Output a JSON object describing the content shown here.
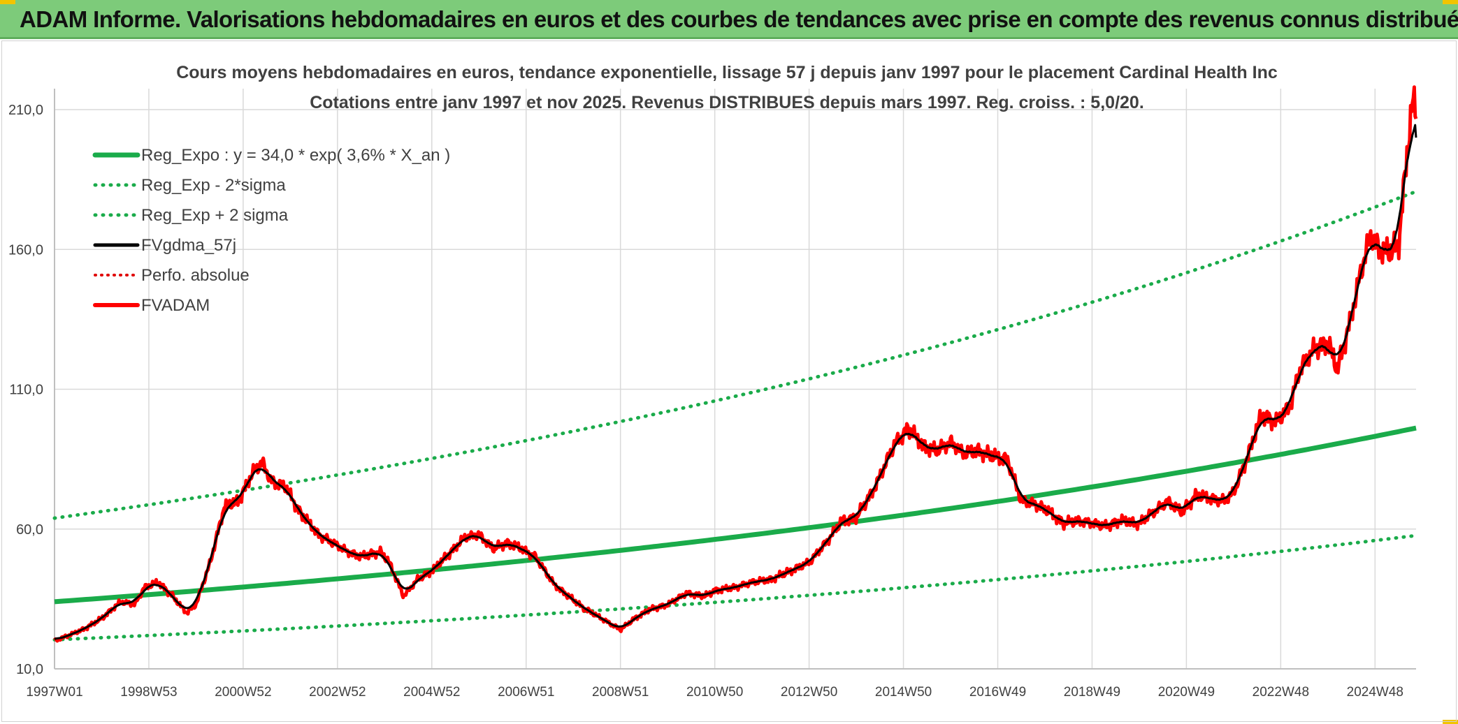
{
  "banner": {
    "title": "ADAM Informe. Valorisations hebdomadaires en euros et des courbes de tendances avec prise en compte des revenus connus distribués"
  },
  "colors": {
    "banner": "#7dcb7a",
    "reg": "#1aab4a",
    "sigma": "#1aab4a",
    "fv": "#000000",
    "perfo": "#e00000",
    "adam": "#ff0000",
    "grid": "#d9d9d9",
    "text": "#404040"
  },
  "chart_data": {
    "type": "line",
    "title": "Cours moyens hebdomadaires en euros, tendance exponentielle, lissage 57 j depuis janv 1997 pour le placement Cardinal Health Inc",
    "subtitle": "Cotations entre janv 1997 et nov 2025. Revenus DISTRIBUES depuis mars 1997. Reg. croiss. : 5,0/20.",
    "xlabel": "",
    "ylabel": "",
    "ylim": [
      10,
      210
    ],
    "yticks": [
      "10,0",
      "60,0",
      "110,0",
      "160,0",
      "210,0"
    ],
    "ytick_values": [
      10,
      60,
      110,
      160,
      210
    ],
    "xlim": [
      1997.0,
      2025.87
    ],
    "xticks": [
      "1997W01",
      "1998W53",
      "2000W52",
      "2002W52",
      "2004W52",
      "2006W51",
      "2008W51",
      "2010W50",
      "2012W50",
      "2014W50",
      "2016W49",
      "2018W49",
      "2020W49",
      "2022W48",
      "2024W48"
    ],
    "xtick_values": [
      1997.0,
      1999.0,
      2001.0,
      2003.0,
      2005.0,
      2007.0,
      2009.0,
      2011.0,
      2013.0,
      2015.0,
      2017.0,
      2019.0,
      2021.0,
      2023.0,
      2025.0
    ],
    "grid": true,
    "legend_position": "top-left",
    "legend": [
      "Reg_Expo : y = 34,0 * exp( 3,6% *  X_an )",
      "Reg_Exp - 2*sigma",
      "Reg_Exp + 2 sigma",
      "FVgdma_57j",
      "Perfo. absolue",
      "FVADAM"
    ],
    "regression": {
      "a": 34.0,
      "rate": 0.036,
      "lower_factor": 0.6,
      "upper_factor": 1.88
    },
    "fvadam": {
      "name": "FVADAM",
      "x": [
        1997.0,
        1997.3,
        1997.6,
        1998.0,
        1998.4,
        1998.7,
        1998.9,
        1999.2,
        1999.5,
        1999.8,
        2000.0,
        2000.3,
        2000.6,
        2000.9,
        2001.2,
        2001.4,
        2001.6,
        2001.9,
        2002.2,
        2002.6,
        2002.9,
        2003.2,
        2003.5,
        2003.9,
        2004.1,
        2004.4,
        2004.7,
        2005.0,
        2005.3,
        2005.7,
        2006.0,
        2006.3,
        2006.6,
        2006.9,
        2007.2,
        2007.6,
        2007.9,
        2008.2,
        2008.6,
        2008.9,
        2009.0,
        2009.3,
        2009.6,
        2010.0,
        2010.4,
        2010.8,
        2011.0,
        2011.4,
        2011.8,
        2012.2,
        2012.6,
        2013.0,
        2013.4,
        2013.7,
        2014.0,
        2014.4,
        2014.8,
        2015.1,
        2015.4,
        2015.7,
        2016.0,
        2016.3,
        2016.6,
        2016.9,
        2017.2,
        2017.5,
        2017.8,
        2018.1,
        2018.4,
        2018.7,
        2019.0,
        2019.3,
        2019.6,
        2020.0,
        2020.3,
        2020.6,
        2020.9,
        2021.2,
        2021.5,
        2021.8,
        2022.0,
        2022.3,
        2022.6,
        2022.9,
        2023.2,
        2023.4,
        2023.7,
        2024.0,
        2024.2,
        2024.5,
        2024.7,
        2024.9,
        2025.1,
        2025.3,
        2025.5,
        2025.7,
        2025.8,
        2025.87
      ],
      "values": [
        20.0,
        22.0,
        24.0,
        28.0,
        34.0,
        33.0,
        39.0,
        41.0,
        36.0,
        30.0,
        33.0,
        48.0,
        68.0,
        70.0,
        80.0,
        84.0,
        77.0,
        75.0,
        66.0,
        58.0,
        55.0,
        52.0,
        50.0,
        52.0,
        48.0,
        36.0,
        42.0,
        45.0,
        50.0,
        57.0,
        58.0,
        53.0,
        55.0,
        53.0,
        50.0,
        40.0,
        36.0,
        32.0,
        28.0,
        25.0,
        24.0,
        28.0,
        31.0,
        33.0,
        37.0,
        36.0,
        38.0,
        39.0,
        41.0,
        42.0,
        45.0,
        48.0,
        56.0,
        63.0,
        64.0,
        75.0,
        90.0,
        96.0,
        90.0,
        88.0,
        91.0,
        87.0,
        88.0,
        86.0,
        85.0,
        70.0,
        69.0,
        66.0,
        62.0,
        63.0,
        62.0,
        61.0,
        63.0,
        62.0,
        66.0,
        70.0,
        66.0,
        72.0,
        71.0,
        70.0,
        73.0,
        86.0,
        101.0,
        98.0,
        104.0,
        117.0,
        124.0,
        127.0,
        117.0,
        136.0,
        152.0,
        165.0,
        160.0,
        159.0,
        162.0,
        198.0,
        213.0,
        210.0
      ]
    },
    "fv_smoothed_name": "FVgdma_57j",
    "fv_smoothed_end_value": 200.0
  }
}
